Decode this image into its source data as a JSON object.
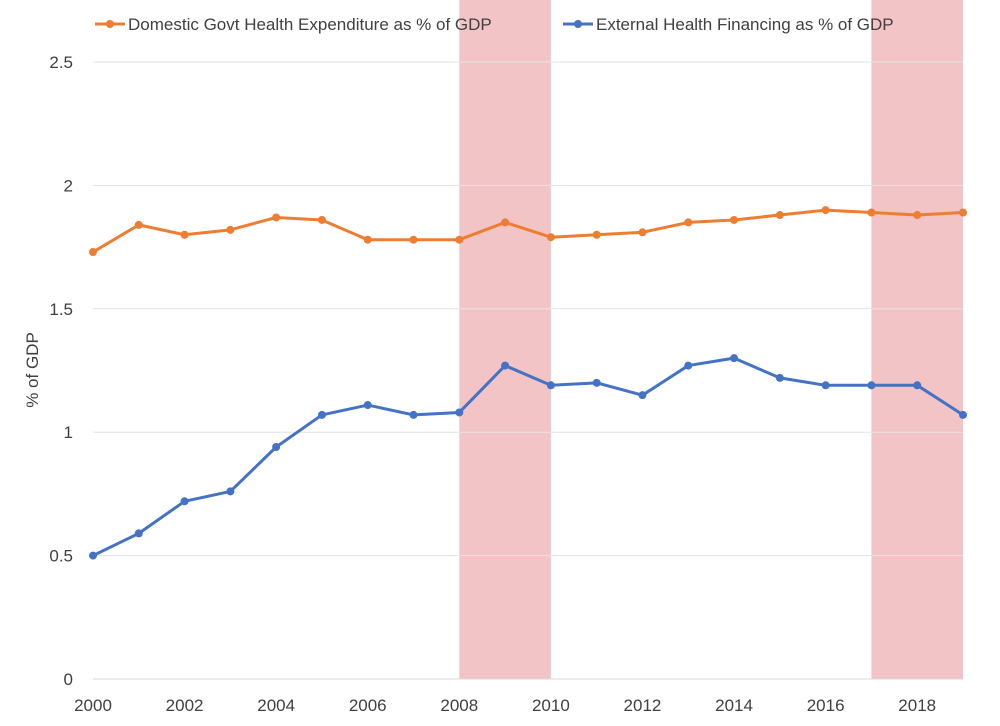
{
  "chart_data": {
    "type": "line",
    "title": "",
    "xlabel": "",
    "ylabel": "% of GDP",
    "x": [
      2000,
      2001,
      2002,
      2003,
      2004,
      2005,
      2006,
      2007,
      2008,
      2009,
      2010,
      2011,
      2012,
      2013,
      2014,
      2015,
      2016,
      2017,
      2018,
      2019
    ],
    "xlim": [
      2000,
      2019
    ],
    "ylim": [
      0,
      2.5
    ],
    "x_ticks": [
      "2000",
      "2002",
      "2004",
      "2006",
      "2008",
      "2010",
      "2012",
      "2014",
      "2016",
      "2018"
    ],
    "y_ticks": [
      "0",
      "0.5",
      "1",
      "1.5",
      "2",
      "2.5"
    ],
    "grid": "horizontal",
    "legend_position": "top",
    "series": [
      {
        "name": "Domestic Govt Health Expenditure as % of GDP",
        "color": "#ED7D31",
        "values": [
          1.73,
          1.84,
          1.8,
          1.82,
          1.87,
          1.86,
          1.78,
          1.78,
          1.78,
          1.85,
          1.79,
          1.8,
          1.81,
          1.85,
          1.86,
          1.88,
          1.9,
          1.89,
          1.88,
          1.89
        ]
      },
      {
        "name": "External Health Financing as % of GDP",
        "color": "#4472C4",
        "values": [
          0.5,
          0.59,
          0.72,
          0.76,
          0.94,
          1.07,
          1.11,
          1.07,
          1.08,
          1.27,
          1.19,
          1.2,
          1.15,
          1.27,
          1.3,
          1.22,
          1.19,
          1.19,
          1.19,
          1.07
        ]
      }
    ],
    "shaded_periods": [
      {
        "start": 2008,
        "end": 2010,
        "color": "#F2C4C6"
      },
      {
        "start": 2017,
        "end": 2019,
        "color": "#F2C4C6"
      }
    ]
  }
}
